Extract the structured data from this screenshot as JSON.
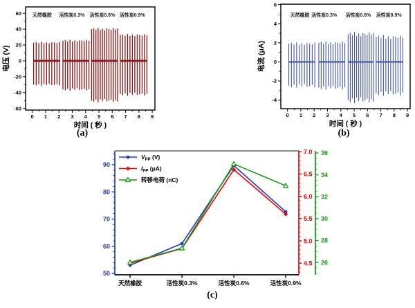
{
  "figure": {
    "captions": {
      "a": "(a)",
      "b": "(b)",
      "c": "(c)"
    }
  },
  "chart_data": [
    {
      "id": "a",
      "type": "spike-train",
      "xlabel": "时间 ( 秒 )",
      "ylabel": "电压 (V)",
      "xlim": [
        -0.5,
        9.2
      ],
      "ylim": [
        -62,
        68
      ],
      "xticks": [
        0,
        1,
        2,
        3,
        4,
        5,
        6,
        7,
        8,
        9
      ],
      "x_minor_step": 0.5,
      "yticks": [
        -60,
        -40,
        -20,
        0,
        20,
        40,
        60
      ],
      "y_minor_step": 10,
      "color": "#8c1414",
      "groups": [
        {
          "label": "天然橡胶",
          "t_start": 0.1,
          "t_end": 2.05,
          "spikes": 11,
          "pos": 23.0,
          "neg": -30.0,
          "label_x": 0.74,
          "label_y": 56
        },
        {
          "label": "活性炭0.3%",
          "t_start": 2.3,
          "t_end": 4.25,
          "spikes": 12,
          "pos": 25.5,
          "neg": -36.0,
          "label_x": 2.97,
          "label_y": 56
        },
        {
          "label": "活性炭0.6%",
          "t_start": 4.45,
          "t_end": 6.4,
          "spikes": 13,
          "pos": 40.0,
          "neg": -50.0,
          "label_x": 5.25,
          "label_y": 56
        },
        {
          "label": "活性炭0.9%",
          "t_start": 6.6,
          "t_end": 8.6,
          "spikes": 12,
          "pos": 32.5,
          "neg": -42.0,
          "label_x": 7.5,
          "label_y": 56
        }
      ]
    },
    {
      "id": "b",
      "type": "spike-train",
      "xlabel": "时间 ( 秒 )",
      "ylabel": "电流 (μA)",
      "xlim": [
        -0.5,
        9.2
      ],
      "ylim": [
        -4.9,
        6.05
      ],
      "xticks": [
        0,
        1,
        2,
        3,
        4,
        5,
        6,
        7,
        8,
        9
      ],
      "x_minor_step": 0.5,
      "yticks": [
        -4,
        -2,
        0,
        2,
        4,
        6
      ],
      "y_minor_step": 1,
      "color": "#4053b2",
      "groups": [
        {
          "label": "天然橡胶",
          "t_start": 0.1,
          "t_end": 2.05,
          "spikes": 11,
          "pos": 1.9,
          "neg": -2.5,
          "label_x": 0.93,
          "label_y": 4.75
        },
        {
          "label": "活性炭0.3%",
          "t_start": 2.35,
          "t_end": 4.3,
          "spikes": 12,
          "pos": 2.0,
          "neg": -2.7,
          "label_x": 2.75,
          "label_y": 4.75
        },
        {
          "label": "活性炭0.6%",
          "t_start": 4.55,
          "t_end": 6.45,
          "spikes": 13,
          "pos": 2.9,
          "neg": -4.0,
          "label_x": 5.3,
          "label_y": 4.75
        },
        {
          "label": "活性炭0.9%",
          "t_start": 6.65,
          "t_end": 8.65,
          "spikes": 12,
          "pos": 2.6,
          "neg": -3.3,
          "label_x": 7.6,
          "label_y": 4.75
        }
      ]
    },
    {
      "id": "c",
      "type": "line",
      "categories": [
        "天然橡胶",
        "活性炭0.3%",
        "活性炭0.6%",
        "活性炭0.9%"
      ],
      "axes": {
        "left": {
          "color": "#2238c8",
          "min": 49.5,
          "max": 95.1,
          "ticks": [
            "50",
            "60",
            "70",
            "80",
            "90"
          ],
          "minor_step": 2
        },
        "right1": {
          "color": "#f40000",
          "min": 4.24,
          "max": 7.02,
          "ticks": [
            "4.5",
            "5.0",
            "5.5",
            "6.0",
            "6.5",
            "7.0"
          ],
          "minor_step": 0.1
        },
        "right2": {
          "color": "#149c14",
          "min": 24.87,
          "max": 36.19,
          "ticks": [
            "26",
            "28",
            "30",
            "32",
            "34",
            "36"
          ],
          "minor_step": 0.5
        }
      },
      "series": [
        {
          "name_pre": "V",
          "name_sub": "PP",
          "name_post": " (V)",
          "italic": true,
          "axis": "left",
          "color": "#2238c8",
          "marker": "circle",
          "values": [
            53.0,
            61.0,
            89.7,
            72.7
          ]
        },
        {
          "name_pre": "I",
          "name_sub": "PP",
          "name_post": " (μA)",
          "italic": true,
          "axis": "right1",
          "color": "#f40000",
          "marker": "diamond",
          "values": [
            4.5,
            4.83,
            6.6,
            5.6
          ]
        },
        {
          "name_pre": "转移电荷",
          "name_sub": "",
          "name_post": " (nC)",
          "italic": false,
          "axis": "right2",
          "color": "#149c14",
          "marker": "triangle",
          "values": [
            26.0,
            27.3,
            35.0,
            33.0
          ]
        }
      ]
    }
  ]
}
